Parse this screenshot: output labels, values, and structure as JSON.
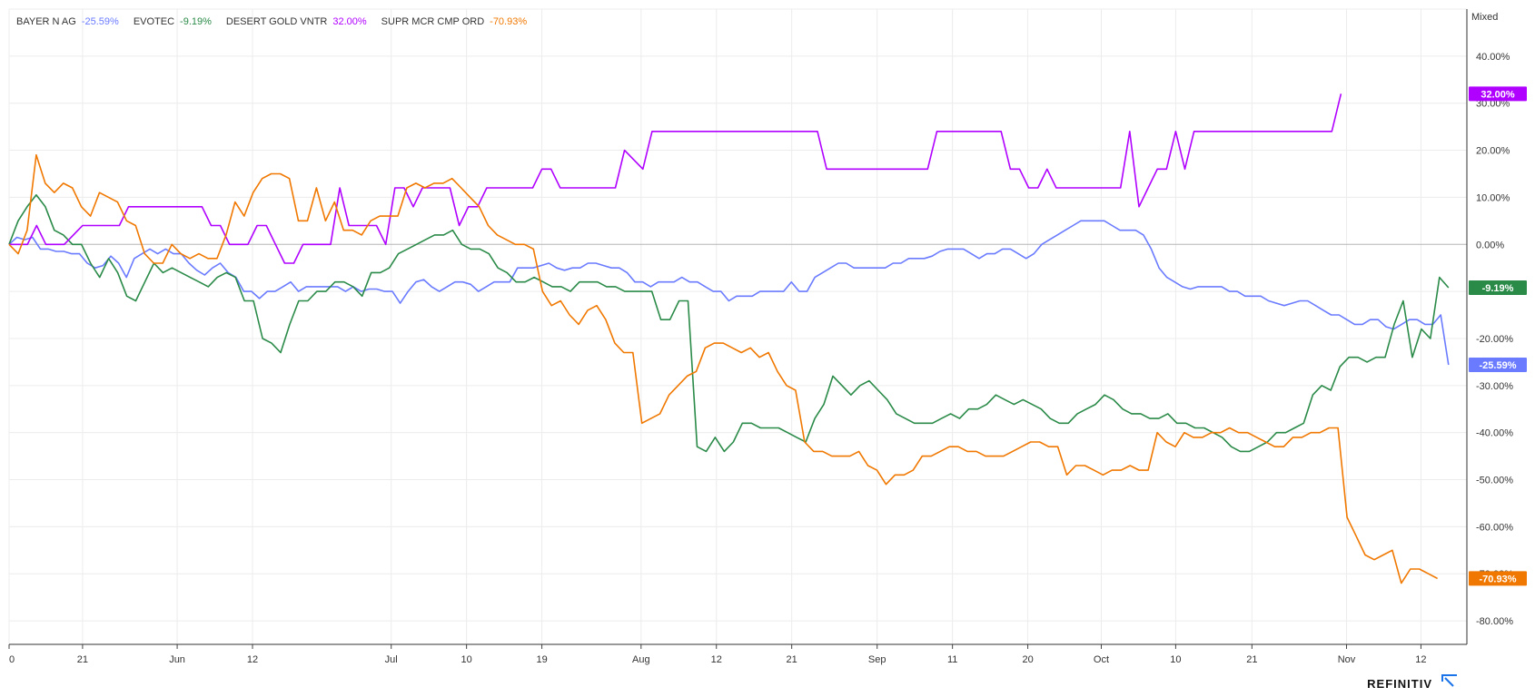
{
  "brand": {
    "name": "REFINITIV"
  },
  "scale_label": "Mixed",
  "colors": {
    "BAYER N AG": "#6a7bff",
    "EVOTEC": "#2a8a48",
    "DESERT GOLD VNTR": "#b000ff",
    "SUPR MCR CMP ORD": "#f07800"
  },
  "chart_data": {
    "type": "line",
    "ylim": [
      -85,
      50
    ],
    "y_ticks": [
      {
        "v": 40,
        "label": "40.00%"
      },
      {
        "v": 30,
        "label": "30.00%"
      },
      {
        "v": 20,
        "label": "20.00%"
      },
      {
        "v": 10,
        "label": "10.00%"
      },
      {
        "v": 0,
        "label": "0.00%"
      },
      {
        "v": -10,
        "label": "-10.00%"
      },
      {
        "v": -20,
        "label": "-20.00%"
      },
      {
        "v": -30,
        "label": "-30.00%"
      },
      {
        "v": -40,
        "label": "-40.00%"
      },
      {
        "v": -50,
        "label": "-50.00%"
      },
      {
        "v": -60,
        "label": "-60.00%"
      },
      {
        "v": -70,
        "label": "-70.00%"
      },
      {
        "v": -80,
        "label": "-80.00%"
      }
    ],
    "x_ticks": [
      {
        "x": 0,
        "label": "0"
      },
      {
        "x": 8,
        "label": "21"
      },
      {
        "x": 18.3,
        "label": "Jun"
      },
      {
        "x": 26.5,
        "label": "12"
      },
      {
        "x": 41.6,
        "label": "Jul"
      },
      {
        "x": 49.8,
        "label": "10"
      },
      {
        "x": 58,
        "label": "19"
      },
      {
        "x": 68.8,
        "label": "Aug"
      },
      {
        "x": 77,
        "label": "12"
      },
      {
        "x": 85.2,
        "label": "21"
      },
      {
        "x": 94.5,
        "label": "Sep"
      },
      {
        "x": 102.7,
        "label": "11"
      },
      {
        "x": 110.9,
        "label": "20"
      },
      {
        "x": 118.9,
        "label": "Oct"
      },
      {
        "x": 127,
        "label": "10"
      },
      {
        "x": 135.3,
        "label": "21"
      },
      {
        "x": 145.6,
        "label": "Nov"
      },
      {
        "x": 153.7,
        "label": "12"
      }
    ],
    "x_range": [
      0,
      158.7
    ],
    "series": [
      {
        "name": "BAYER N AG",
        "last_label": "-25.59%",
        "legend_value": "-25.59%",
        "values": [
          0,
          1.5,
          1,
          1.5,
          -1,
          -1,
          -1.5,
          -1.5,
          -2,
          -2,
          -4,
          -5,
          -4.5,
          -2.5,
          -4,
          -7,
          -3,
          -2,
          -1,
          -2,
          -1,
          -2,
          -2,
          -4,
          -5.5,
          -6.5,
          -5,
          -4,
          -6,
          -7,
          -10,
          -10,
          -11.5,
          -10,
          -10,
          -9,
          -8,
          -10,
          -9,
          -9,
          -9,
          -9,
          -9,
          -10,
          -9,
          -10,
          -9.5,
          -9.5,
          -10,
          -10,
          -12.5,
          -10,
          -8,
          -7.5,
          -9,
          -10,
          -9,
          -8,
          -8,
          -8.5,
          -10,
          -9,
          -8,
          -8,
          -8,
          -5,
          -5,
          -5,
          -4.5,
          -4,
          -5,
          -5.5,
          -5,
          -5,
          -4,
          -4,
          -4.5,
          -5,
          -5,
          -6,
          -8,
          -8,
          -9,
          -8,
          -8,
          -8,
          -7,
          -8,
          -8,
          -9,
          -10,
          -10,
          -12,
          -11,
          -11,
          -11,
          -10,
          -10,
          -10,
          -10,
          -8,
          -10,
          -10,
          -7,
          -6,
          -5,
          -4,
          -4,
          -5,
          -5,
          -5,
          -5,
          -5,
          -4,
          -4,
          -3,
          -3,
          -3,
          -2.5,
          -1.5,
          -1,
          -1,
          -1,
          -2,
          -3,
          -2,
          -2,
          -1,
          -1,
          -2,
          -3,
          -2,
          0,
          1,
          2,
          3,
          4,
          5,
          5,
          5,
          5,
          4,
          3,
          3,
          3,
          2,
          -1,
          -5,
          -7,
          -8,
          -9,
          -9.5,
          -9,
          -9,
          -9,
          -9,
          -10,
          -10,
          -11,
          -11,
          -11,
          -12,
          -12.5,
          -13,
          -12.5,
          -12,
          -12,
          -13,
          -14,
          -15,
          -15,
          -16,
          -17,
          -17,
          -16,
          -16,
          -17.5,
          -18,
          -17,
          -16,
          -16,
          -17,
          -17,
          -15,
          -25.6
        ],
        "x_dense": true
      },
      {
        "name": "EVOTEC",
        "last_label": "-9.19%",
        "legend_value": "-9.19%",
        "values": [
          0,
          5,
          8,
          10.5,
          8,
          3,
          2,
          0,
          0,
          -4,
          -7,
          -3,
          -6,
          -11,
          -12,
          -8,
          -4,
          -6,
          -5,
          -6,
          -7,
          -8,
          -9,
          -7,
          -6,
          -7,
          -12,
          -12,
          -20,
          -21,
          -23,
          -17,
          -12,
          -12,
          -10,
          -10,
          -8,
          -8,
          -9,
          -11,
          -6,
          -6,
          -5,
          -2,
          -1,
          0,
          1,
          2,
          2,
          3,
          0,
          -1,
          -1,
          -2,
          -5,
          -6,
          -8,
          -8,
          -7,
          -8,
          -9,
          -9,
          -10,
          -8,
          -8,
          -8,
          -9,
          -9,
          -10,
          -10,
          -10,
          -10,
          -16,
          -16,
          -12,
          -12,
          -43,
          -44,
          -41,
          -44,
          -42,
          -38,
          -38,
          -39,
          -39,
          -39,
          -40,
          -41,
          -42,
          -37,
          -34,
          -28,
          -30,
          -32,
          -30,
          -29,
          -31,
          -33,
          -36,
          -37,
          -38,
          -38,
          -38,
          -37,
          -36,
          -37,
          -35,
          -35,
          -34,
          -32,
          -33,
          -34,
          -33,
          -34,
          -35,
          -37,
          -38,
          -38,
          -36,
          -35,
          -34,
          -32,
          -33,
          -35,
          -36,
          -36,
          -37,
          -37,
          -36,
          -38,
          -38,
          -39,
          -39,
          -40,
          -41,
          -43,
          -44,
          -44,
          -43,
          -42,
          -40,
          -40,
          -39,
          -38,
          -32,
          -30,
          -31,
          -26,
          -24,
          -24,
          -25,
          -24,
          -24,
          -17,
          -12,
          -24,
          -18,
          -20,
          -7,
          -9.2
        ],
        "x_dense": true
      },
      {
        "name": "DESERT GOLD VNTR",
        "last_label": "32.00%",
        "legend_value": "32.00%",
        "points": [
          [
            0,
            0
          ],
          [
            2,
            0
          ],
          [
            3,
            4
          ],
          [
            4,
            0
          ],
          [
            5,
            0
          ],
          [
            6,
            0
          ],
          [
            7,
            2
          ],
          [
            8,
            4
          ],
          [
            12,
            4
          ],
          [
            13,
            8
          ],
          [
            21,
            8
          ],
          [
            22,
            4
          ],
          [
            23,
            4
          ],
          [
            24,
            0
          ],
          [
            26,
            0
          ],
          [
            27,
            4
          ],
          [
            28,
            4
          ],
          [
            29,
            0
          ],
          [
            30,
            -4
          ],
          [
            31,
            -4
          ],
          [
            32,
            0
          ],
          [
            35,
            0
          ],
          [
            36,
            12
          ],
          [
            37,
            4
          ],
          [
            40,
            4
          ],
          [
            41,
            0
          ],
          [
            42,
            12
          ],
          [
            43,
            12
          ],
          [
            44,
            8
          ],
          [
            45,
            12
          ],
          [
            48,
            12
          ],
          [
            49,
            4
          ],
          [
            50,
            8
          ],
          [
            51,
            8
          ],
          [
            52,
            12
          ],
          [
            57,
            12
          ],
          [
            58,
            16
          ],
          [
            59,
            16
          ],
          [
            60,
            12
          ],
          [
            66,
            12
          ],
          [
            67,
            20
          ],
          [
            69,
            16
          ],
          [
            70,
            24
          ],
          [
            88,
            24
          ],
          [
            89,
            16
          ],
          [
            100,
            16
          ],
          [
            101,
            24
          ],
          [
            108,
            24
          ],
          [
            109,
            16
          ],
          [
            110,
            16
          ],
          [
            111,
            12
          ],
          [
            112,
            12
          ],
          [
            113,
            16
          ],
          [
            114,
            12
          ],
          [
            121,
            12
          ],
          [
            122,
            24
          ],
          [
            123,
            8
          ],
          [
            124,
            12
          ],
          [
            125,
            16
          ],
          [
            126,
            16
          ],
          [
            127,
            24
          ],
          [
            128,
            16
          ],
          [
            129,
            24
          ],
          [
            144,
            24
          ],
          [
            145,
            32
          ]
        ]
      },
      {
        "name": "SUPR MCR CMP ORD",
        "last_label": "-70.93%",
        "legend_value": "-70.93%",
        "values": [
          0,
          -2,
          3,
          19,
          13,
          11,
          13,
          12,
          8,
          6,
          11,
          10,
          9,
          5,
          4,
          -2,
          -4,
          -4,
          0,
          -2,
          -3,
          -2,
          -3,
          -3,
          2,
          9,
          6,
          11,
          14,
          15,
          15,
          14,
          5,
          5,
          12,
          5,
          9,
          3,
          3,
          2,
          5,
          6,
          6,
          6,
          12,
          13,
          12,
          13,
          13,
          14,
          12,
          10,
          8,
          4,
          2,
          1,
          0,
          0,
          -1,
          -10,
          -13,
          -12,
          -15,
          -17,
          -14,
          -13,
          -16,
          -21,
          -23,
          -23,
          -38,
          -37,
          -36,
          -32,
          -30,
          -28,
          -27,
          -22,
          -21,
          -21,
          -22,
          -23,
          -22,
          -24,
          -23,
          -27,
          -30,
          -31,
          -42,
          -44,
          -44,
          -45,
          -45,
          -45,
          -44,
          -47,
          -48,
          -51,
          -49,
          -49,
          -48,
          -45,
          -45,
          -44,
          -43,
          -43,
          -44,
          -44,
          -45,
          -45,
          -45,
          -44,
          -43,
          -42,
          -42,
          -43,
          -43,
          -49,
          -47,
          -47,
          -48,
          -49,
          -48,
          -48,
          -47,
          -48,
          -48,
          -40,
          -42,
          -43,
          -40,
          -41,
          -41,
          -40,
          -40,
          -39,
          -40,
          -40,
          -41,
          -42,
          -43,
          -43,
          -41,
          -41,
          -40,
          -40,
          -39,
          -39,
          -58,
          -62,
          -66,
          -67,
          -66,
          -65,
          -72,
          -69,
          -69,
          -70,
          -71
        ],
        "x_dense": true
      }
    ]
  }
}
